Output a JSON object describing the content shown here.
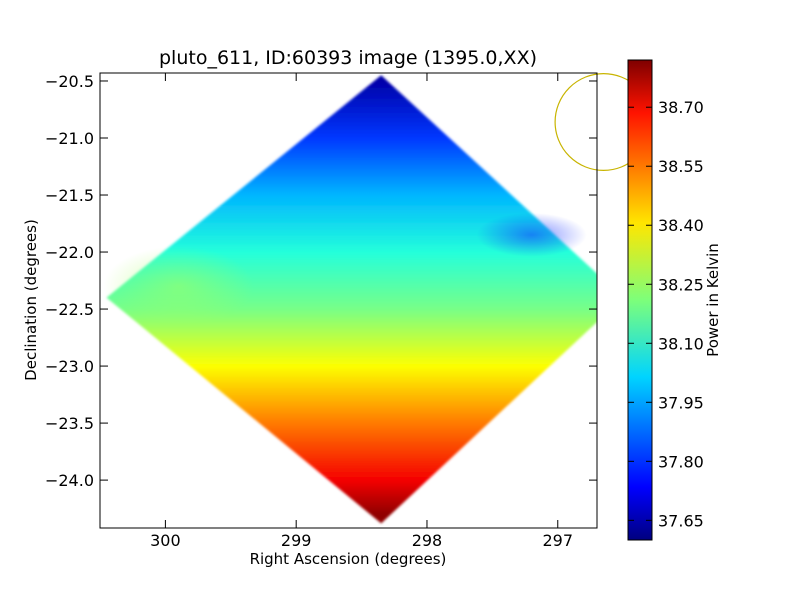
{
  "chart_data": {
    "type": "heatmap",
    "title": "pluto_611, ID:60393 image (1395.0,XX)",
    "xlabel": "Right Ascension (degrees)",
    "ylabel": "Declination (degrees)",
    "colorbar_label": "Power in Kelvin",
    "colormap": "jet",
    "x_inverted": true,
    "xlim": [
      300.5,
      296.7
    ],
    "ylim": [
      -24.42,
      -20.43
    ],
    "x_ticks": [
      300,
      299,
      298,
      297
    ],
    "x_tick_labels": [
      "300",
      "299",
      "298",
      "297"
    ],
    "y_ticks": [
      -20.5,
      -21.0,
      -21.5,
      -22.0,
      -22.5,
      -23.0,
      -23.5,
      -24.0
    ],
    "y_tick_labels": [
      "−20.5",
      "−21.0",
      "−21.5",
      "−22.0",
      "−22.5",
      "−23.0",
      "−23.5",
      "−24.0"
    ],
    "colorbar_range": [
      37.6,
      38.82
    ],
    "colorbar_ticks": [
      37.65,
      37.8,
      37.95,
      38.1,
      38.25,
      38.4,
      38.55,
      38.7
    ],
    "colorbar_tick_labels": [
      "37.65",
      "37.80",
      "37.95",
      "38.10",
      "38.25",
      "38.40",
      "38.55",
      "38.70"
    ],
    "image_footprint": {
      "shape": "diamond",
      "vertices_ra_dec": [
        [
          298.35,
          -20.45
        ],
        [
          296.5,
          -22.4
        ],
        [
          298.35,
          -24.38
        ],
        [
          300.45,
          -22.4
        ]
      ]
    },
    "value_trend": [
      {
        "dec": -20.5,
        "value": 37.65
      },
      {
        "dec": -21.0,
        "value": 37.82
      },
      {
        "dec": -21.5,
        "value": 37.97
      },
      {
        "dec": -22.0,
        "value": 38.1
      },
      {
        "dec": -22.5,
        "value": 38.2
      },
      {
        "dec": -23.0,
        "value": 38.36
      },
      {
        "dec": -23.5,
        "value": 38.52
      },
      {
        "dec": -24.0,
        "value": 38.68
      },
      {
        "dec": -24.3,
        "value": 38.8
      }
    ],
    "beam": {
      "shape": "circle",
      "color": "#c8b400",
      "ra": 296.65,
      "dec": -20.86,
      "radius_deg": 0.37
    }
  }
}
